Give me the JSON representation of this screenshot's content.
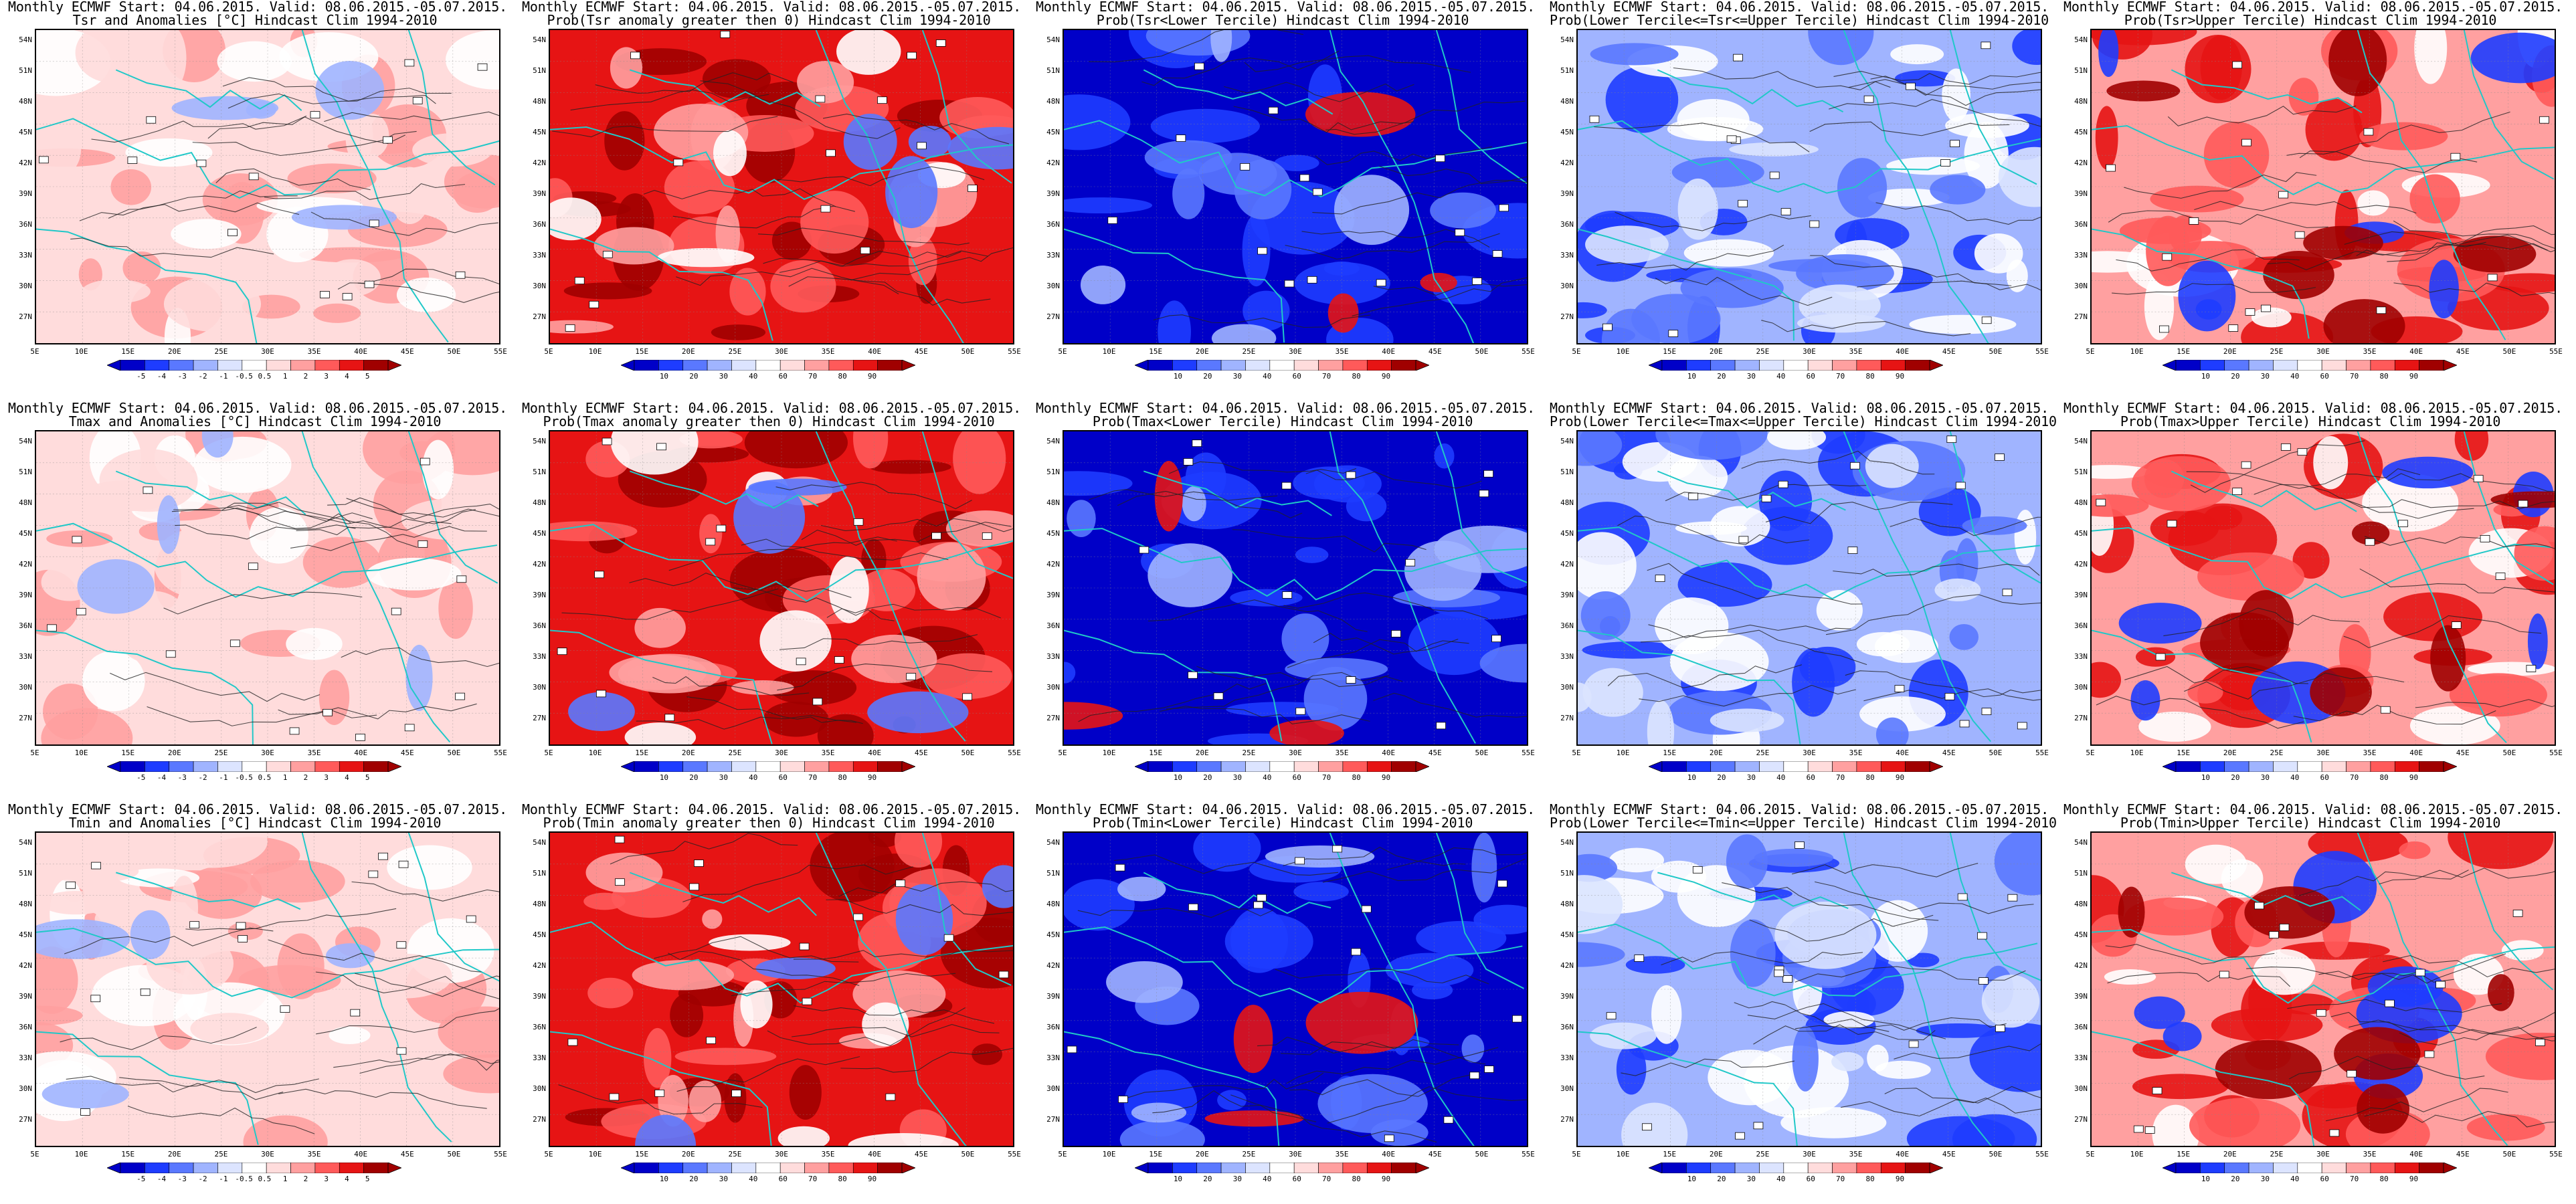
{
  "common": {
    "line1": "Monthly ECMWF Start: 04.06.2015. Valid: 08.06.2015.-05.07.2015.",
    "lat_labels": [
      "54N",
      "51N",
      "48N",
      "45N",
      "42N",
      "39N",
      "36N",
      "33N",
      "30N",
      "27N"
    ],
    "lon_labels": [
      "5E",
      "10E",
      "15E",
      "20E",
      "25E",
      "30E",
      "35E",
      "40E",
      "45E",
      "50E",
      "55E"
    ],
    "anom_ticks": [
      "-5",
      "-4",
      "-3",
      "-2",
      "-1",
      "-0.5",
      "0.5",
      "1",
      "2",
      "3",
      "4",
      "5"
    ],
    "prob_ticks": [
      "10",
      "20",
      "30",
      "40",
      "60",
      "70",
      "80",
      "90"
    ],
    "colors": {
      "dark_blue": "#0000c8",
      "blue": "#1e3cff",
      "mid_blue": "#5a78ff",
      "light_blue": "#a0b4ff",
      "pale_blue": "#dce4ff",
      "white": "#ffffff",
      "pale_red": "#ffdcdc",
      "light_red": "#ffa0a0",
      "mid_red": "#ff5a5a",
      "red": "#e61414",
      "dark_red": "#a00000",
      "coast": "#20c8c8"
    }
  },
  "panels": [
    {
      "type": "anom",
      "line2": "Tsr and Anomalies [°C] Hindcast Clim 1994-2010",
      "fill_scheme": "anom_light"
    },
    {
      "type": "prob",
      "line2": "Prob(Tsr anomaly greater then 0) Hindcast Clim 1994-2010",
      "fill_scheme": "red_strong"
    },
    {
      "type": "prob",
      "line2": "Prob(Tsr<Lower Tercile) Hindcast Clim 1994-2010",
      "fill_scheme": "blue_strong"
    },
    {
      "type": "prob",
      "line2": "Prob(Lower Tercile<=Tsr<=Upper Tercile) Hindcast Clim 1994-2010",
      "fill_scheme": "blue_mixed"
    },
    {
      "type": "prob",
      "line2": "Prob(Tsr>Upper Tercile) Hindcast Clim 1994-2010",
      "fill_scheme": "red_mixed"
    },
    {
      "type": "anom",
      "line2": "Tmax and Anomalies [°C] Hindcast Clim 1994-2010",
      "fill_scheme": "anom_light"
    },
    {
      "type": "prob",
      "line2": "Prob(Tmax anomaly greater then 0) Hindcast Clim 1994-2010",
      "fill_scheme": "red_strong"
    },
    {
      "type": "prob",
      "line2": "Prob(Tmax<Lower Tercile) Hindcast Clim 1994-2010",
      "fill_scheme": "blue_strong"
    },
    {
      "type": "prob",
      "line2": "Prob(Lower Tercile<=Tmax<=Upper Tercile) Hindcast Clim 1994-2010",
      "fill_scheme": "blue_mixed"
    },
    {
      "type": "prob",
      "line2": "Prob(Tmax>Upper Tercile) Hindcast Clim 1994-2010",
      "fill_scheme": "red_mixed"
    },
    {
      "type": "anom",
      "line2": "Tmin and Anomalies [°C] Hindcast Clim 1994-2010",
      "fill_scheme": "anom_light"
    },
    {
      "type": "prob",
      "line2": "Prob(Tmin anomaly greater then 0) Hindcast Clim 1994-2010",
      "fill_scheme": "red_strong"
    },
    {
      "type": "prob",
      "line2": "Prob(Tmin<Lower Tercile) Hindcast Clim 1994-2010",
      "fill_scheme": "blue_strong"
    },
    {
      "type": "prob",
      "line2": "Prob(Lower Tercile<=Tmin<=Upper Tercile) Hindcast Clim 1994-2010",
      "fill_scheme": "blue_mixed"
    },
    {
      "type": "prob",
      "line2": "Prob(Tmin>Upper Tercile) Hindcast Clim 1994-2010",
      "fill_scheme": "red_mixed"
    }
  ]
}
